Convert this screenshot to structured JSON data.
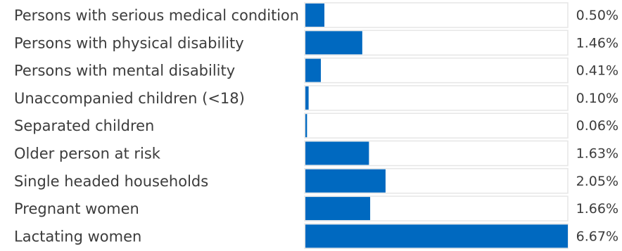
{
  "chart_data": {
    "type": "bar",
    "orientation": "horizontal",
    "categories": [
      "Persons with serious medical condition",
      "Persons with physical disability",
      "Persons with mental disability",
      "Unaccompanied children (<18)",
      "Separated children",
      "Older person at risk",
      "Single headed households",
      "Pregnant women",
      "Lactating women"
    ],
    "values": [
      0.5,
      1.46,
      0.41,
      0.1,
      0.06,
      1.63,
      2.05,
      1.66,
      6.67
    ],
    "value_labels": [
      "0.50%",
      "1.46%",
      "0.41%",
      "0.10%",
      "0.06%",
      "1.63%",
      "2.05%",
      "1.66%",
      "6.67%"
    ],
    "unit": "%",
    "xlim": [
      0,
      6.67
    ],
    "grid": false,
    "legend": "none",
    "bar_color": "#0069c0",
    "track_color": "#ffffff",
    "track_border": "#e6e6e6"
  }
}
